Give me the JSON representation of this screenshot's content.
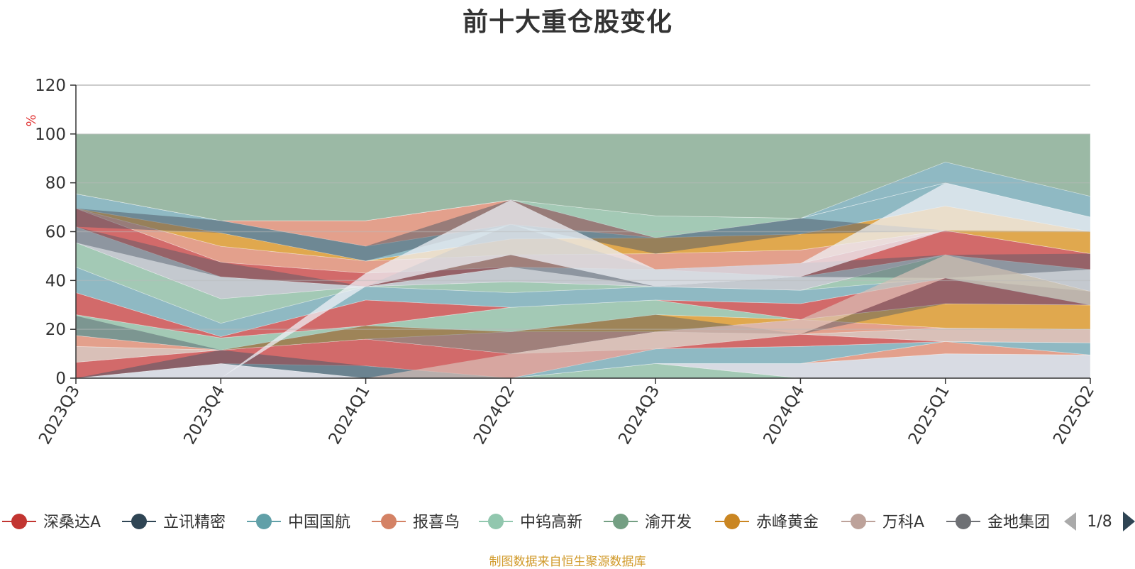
{
  "chart_data": {
    "type": "area",
    "title": "前十大重仓股变化",
    "ylabel": "%",
    "ylim": [
      0,
      120
    ],
    "yticks": [
      0,
      20,
      40,
      60,
      80,
      100,
      120
    ],
    "grid": true,
    "stacked": true,
    "categories": [
      "2023Q3",
      "2023Q4",
      "2024Q1",
      "2024Q2",
      "2024Q3",
      "2024Q4",
      "2025Q1",
      "2025Q2"
    ],
    "bands": [
      {
        "name": "b1",
        "color": "#a3c9b5",
        "lower": [
          0,
          0,
          0,
          0,
          0,
          0,
          0,
          0
        ],
        "upper": [
          0,
          0,
          0,
          0,
          6,
          0,
          0,
          0
        ]
      },
      {
        "name": "b2",
        "color": "#d8dbe3",
        "lower": [
          0,
          0,
          0,
          0,
          6,
          0,
          0,
          0
        ],
        "upper": [
          0,
          6,
          0,
          0,
          6,
          6,
          10,
          9.5
        ]
      },
      {
        "name": "b3",
        "color": "#e3a08c",
        "lower": [
          0,
          6,
          0,
          0,
          6,
          6,
          10,
          9.5
        ],
        "upper": [
          0,
          6,
          0,
          0,
          6,
          6,
          15,
          9.5
        ]
      },
      {
        "name": "b4",
        "color": "#8fb9c3",
        "lower": [
          0,
          6,
          0,
          0,
          6,
          6,
          15,
          9.5
        ],
        "upper": [
          0,
          6,
          5,
          0,
          12,
          13,
          15,
          14.5
        ]
      },
      {
        "name": "b5",
        "color": "#d26a6a",
        "lower": [
          0,
          6,
          5,
          0,
          12,
          13,
          15,
          14.5
        ],
        "upper": [
          6.5,
          11.5,
          16,
          10,
          12,
          18,
          15,
          14.5
        ]
      },
      {
        "name": "b6",
        "color": "#d9c0b8",
        "lower": [
          6.5,
          11.5,
          16,
          10,
          12,
          18,
          15,
          14.5
        ],
        "upper": [
          13,
          11.5,
          16,
          10,
          19,
          18,
          20.5,
          20
        ]
      },
      {
        "name": "b7",
        "color": "#e3a08c",
        "lower": [
          13,
          11.5,
          16,
          10,
          19,
          18,
          20.5,
          20
        ],
        "upper": [
          17.5,
          11.5,
          16,
          19,
          19,
          24,
          20.5,
          20
        ]
      },
      {
        "name": "b8",
        "color": "#e0a84e",
        "lower": [
          17.5,
          11.5,
          16,
          19,
          19,
          24,
          20.5,
          20
        ],
        "upper": [
          17.5,
          11.5,
          21.5,
          19,
          26,
          24,
          30.5,
          30
        ]
      },
      {
        "name": "b9",
        "color": "#a3c9b5",
        "lower": [
          17.5,
          11.5,
          21.5,
          19,
          26,
          24,
          30.5,
          30
        ],
        "upper": [
          26,
          16.5,
          21.5,
          29,
          32,
          24,
          30.5,
          30
        ]
      },
      {
        "name": "b10",
        "color": "#d26a6a",
        "lower": [
          26,
          16.5,
          21.5,
          29,
          32,
          24,
          30.5,
          30
        ],
        "upper": [
          35,
          17,
          32,
          29,
          32,
          30.5,
          41,
          30
        ]
      },
      {
        "name": "b11",
        "color": "#8fb9c3",
        "lower": [
          35,
          17,
          32,
          29,
          32,
          30.5,
          41,
          30
        ],
        "upper": [
          45.5,
          22.5,
          37.5,
          35,
          37.5,
          36,
          41,
          30
        ]
      },
      {
        "name": "b12",
        "color": "#a3c9b5",
        "lower": [
          45.5,
          22.5,
          37.5,
          35,
          37.5,
          36,
          41,
          30
        ],
        "upper": [
          55.5,
          32.5,
          37.5,
          39.5,
          37.5,
          36,
          50.5,
          35.5
        ]
      },
      {
        "name": "b13",
        "color": "#c4c9cf",
        "lower": [
          55.5,
          32.5,
          37.5,
          39.5,
          37.5,
          36,
          50.5,
          35.5
        ],
        "upper": [
          62,
          41.5,
          37.5,
          45.5,
          44.5,
          41.5,
          50.5,
          44.5
        ]
      },
      {
        "name": "b14",
        "color": "#d26a6a",
        "lower": [
          62,
          41.5,
          37.5,
          45.5,
          44.5,
          41.5,
          50.5,
          44.5
        ],
        "upper": [
          69.5,
          47.5,
          43,
          45.5,
          44.5,
          47,
          60.5,
          51
        ]
      },
      {
        "name": "b15",
        "color": "#e3a08c",
        "lower": [
          69.5,
          47.5,
          43,
          45.5,
          44.5,
          47,
          60.5,
          51
        ],
        "upper": [
          69.5,
          54,
          48,
          50.5,
          51,
          52.5,
          60.5,
          51
        ]
      },
      {
        "name": "b16",
        "color": "#e0a84e",
        "lower": [
          69.5,
          54,
          48,
          50.5,
          51,
          52.5,
          60.5,
          51
        ],
        "upper": [
          69.5,
          59.5,
          48,
          57,
          57.5,
          59,
          70.5,
          60
        ]
      },
      {
        "name": "b17",
        "color": "#8fb9c3",
        "lower": [
          69.5,
          59.5,
          48,
          57,
          57.5,
          59,
          70.5,
          60
        ],
        "upper": [
          75.5,
          64.5,
          54,
          63,
          57.5,
          65.5,
          80,
          66
        ]
      },
      {
        "name": "b18",
        "color": "#e3a08c",
        "lower": [
          75.5,
          64.5,
          54,
          63,
          57.5,
          65.5,
          80,
          66
        ],
        "upper": [
          75.5,
          64.5,
          64.5,
          73,
          57.5,
          65.5,
          80,
          66
        ]
      },
      {
        "name": "b19",
        "color": "#a3c9b5",
        "lower": [
          75.5,
          64.5,
          64.5,
          73,
          57.5,
          65.5,
          80,
          66
        ],
        "upper": [
          75.5,
          64.5,
          64.5,
          73,
          66.5,
          65.5,
          80,
          66
        ]
      },
      {
        "name": "b20",
        "color": "#8fb9c3",
        "lower": [
          75.5,
          64.5,
          64.5,
          73,
          66.5,
          65.5,
          80,
          66
        ],
        "upper": [
          75.5,
          64.5,
          64.5,
          73,
          66.5,
          65.5,
          88.5,
          74.5
        ]
      },
      {
        "name": "b21",
        "color": "#9bb9a5",
        "lower": [
          75.5,
          64.5,
          64.5,
          73,
          66.5,
          65.5,
          88.5,
          74.5
        ],
        "upper": [
          100,
          100,
          100,
          100,
          100,
          100,
          100,
          100
        ]
      }
    ],
    "overlays": [
      {
        "name": "o1",
        "color": "#4e5866",
        "opacity": 0.55,
        "lower": [
          0,
          6,
          0,
          0,
          6,
          6,
          10,
          9.5
        ],
        "upper": [
          0,
          11.5,
          5,
          0,
          6,
          6,
          10,
          9.5
        ]
      },
      {
        "name": "o2",
        "color": "#4e5866",
        "opacity": 0.45,
        "lower": [
          17.5,
          11.5,
          16,
          10,
          19,
          18,
          30.5,
          30
        ],
        "upper": [
          25.5,
          11.5,
          21.5,
          19,
          26,
          18,
          41,
          35.5
        ]
      },
      {
        "name": "o3",
        "color": "#4e5866",
        "opacity": 0.45,
        "lower": [
          55.5,
          41.5,
          37.5,
          45.5,
          37.5,
          41.5,
          41,
          44.5
        ],
        "upper": [
          62,
          47.5,
          37.5,
          63,
          44.5,
          47,
          50.5,
          51
        ]
      },
      {
        "name": "o4",
        "color": "#4e5866",
        "opacity": 0.5,
        "lower": [
          62,
          59.5,
          48,
          63,
          51,
          59,
          60.5,
          51
        ],
        "upper": [
          69.5,
          64.5,
          54,
          73,
          57.5,
          65.5,
          60.5,
          51
        ]
      },
      {
        "name": "o5",
        "color": "#eef0f5",
        "opacity": 0.75,
        "lower": [
          0,
          0,
          37.5,
          50.5,
          37.5,
          41.5,
          60.5,
          60
        ],
        "upper": [
          0,
          0,
          43,
          73,
          44.5,
          47,
          80,
          66
        ]
      },
      {
        "name": "o6",
        "color": "#d9c0b8",
        "opacity": 0.7,
        "lower": [
          0,
          0,
          0,
          0,
          12,
          18,
          41,
          30
        ],
        "upper": [
          0,
          0,
          0,
          10,
          19,
          24,
          50.5,
          35.5
        ]
      }
    ],
    "legend": {
      "position": "bottom",
      "page": "1/8",
      "items": [
        {
          "name": "深桑达A",
          "color": "#c23531"
        },
        {
          "name": "立讯精密",
          "color": "#2f4554"
        },
        {
          "name": "中国国航",
          "color": "#61a0a8"
        },
        {
          "name": "报喜鸟",
          "color": "#d48265"
        },
        {
          "name": "中钨高新",
          "color": "#91c7ae"
        },
        {
          "name": "渝开发",
          "color": "#749f83"
        },
        {
          "name": "赤峰黄金",
          "color": "#ca8622"
        },
        {
          "name": "万科A",
          "color": "#bda29a"
        },
        {
          "name": "金地集团",
          "color": "#6e7074"
        }
      ]
    }
  },
  "source_note": "制图数据来自恒生聚源数据库",
  "colors": {
    "axis": "#333333",
    "grid": "#bbbbbb",
    "ylabel": "#e03030",
    "source": "#d19a2a",
    "pager_disabled": "#aaaaaa",
    "pager_active": "#2f4554"
  }
}
